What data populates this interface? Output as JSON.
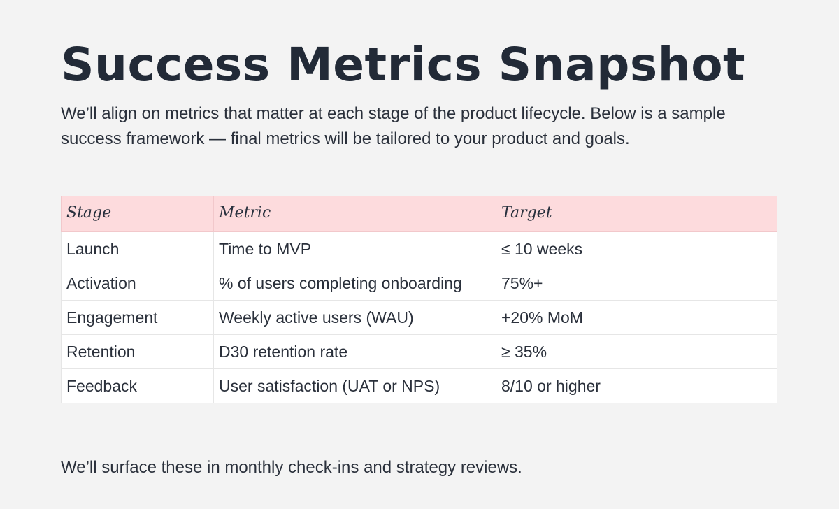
{
  "title": "Success Metrics Snapshot",
  "intro": "We’ll align on metrics that matter at each stage of the product lifecycle. Below is a sample success framework — final metrics will be tailored to your product and goals.",
  "table": {
    "headers": [
      "Stage",
      "Metric",
      "Target"
    ],
    "rows": [
      [
        "Launch",
        "Time to MVP",
        "≤ 10 weeks"
      ],
      [
        "Activation",
        "% of users completing onboarding",
        "75%+"
      ],
      [
        "Engagement",
        "Weekly active users (WAU)",
        "+20% MoM"
      ],
      [
        "Retention",
        "D30 retention rate",
        "≥ 35%"
      ],
      [
        "Feedback",
        "User satisfaction (UAT or NPS)",
        "8/10 or higher"
      ]
    ]
  },
  "footer": "We’ll surface these in monthly check-ins and strategy reviews.",
  "colors": {
    "background": "#f3f3f3",
    "header_row": "#fddbdd",
    "text": "#222a37"
  }
}
